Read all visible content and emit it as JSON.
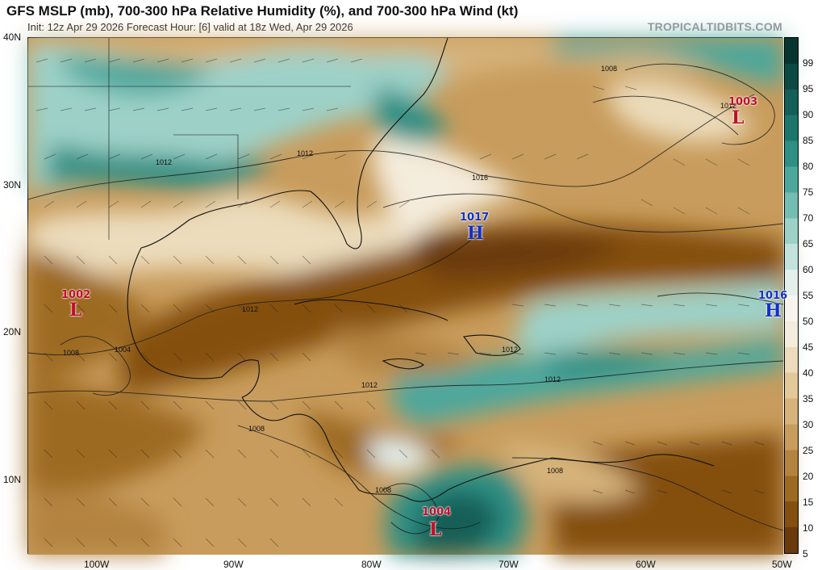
{
  "header": {
    "title": "GFS MSLP (mb), 700-300 hPa Relative Humidity (%), and 700-300 hPa Wind (kt)",
    "subtitle": "Init: 12z Apr 29 2026   Forecast Hour: [6]   valid at 18z Wed, Apr 29 2026",
    "brand": "TROPICALTIDBITS.COM"
  },
  "axes": {
    "latitude_labels": [
      "40N",
      "30N",
      "20N",
      "10N"
    ],
    "longitude_labels": [
      "100W",
      "90W",
      "80W",
      "70W",
      "60W",
      "50W"
    ]
  },
  "colorbar": {
    "labels": [
      "99",
      "95",
      "90",
      "85",
      "80",
      "75",
      "70",
      "65",
      "60",
      "55",
      "50",
      "45",
      "40",
      "35",
      "30",
      "25",
      "20",
      "15",
      "10",
      "5"
    ],
    "colors_low_to_high": [
      "#6b3a0c",
      "#84500f",
      "#9d6a22",
      "#b48340",
      "#c89c5c",
      "#d6b37a",
      "#e2c99a",
      "#ecdcbb",
      "#f4ecdc",
      "#f7f4ee",
      "#e4efec",
      "#c4e2dc",
      "#9dd1c8",
      "#74bdb3",
      "#4ea79c",
      "#2f8f84",
      "#1d766c",
      "#145f57",
      "#0d4943",
      "#08342f"
    ]
  },
  "pressure_systems": [
    {
      "type": "L",
      "value": "1002",
      "color": "#c0102a"
    },
    {
      "type": "H",
      "value": "1017",
      "color": "#1230c8"
    },
    {
      "type": "L",
      "value": "1003",
      "color": "#c0102a"
    },
    {
      "type": "H",
      "value": "1016",
      "color": "#1230c8"
    },
    {
      "type": "L",
      "value": "1004",
      "color": "#c0102a"
    }
  ],
  "isobar_labels": [
    "1008",
    "1012",
    "1012",
    "1016",
    "1012",
    "1008",
    "1004",
    "1012",
    "1012",
    "1012",
    "1008",
    "1008",
    "1008",
    "1012"
  ],
  "colors": {
    "dry_dark": "#6b3a0c",
    "dry_mid": "#b48340",
    "neutral": "#f4ecdc",
    "moist_mid": "#4ea79c",
    "moist_dark": "#0d4943",
    "low_marker": "#c0102a",
    "high_marker": "#1230c8"
  }
}
